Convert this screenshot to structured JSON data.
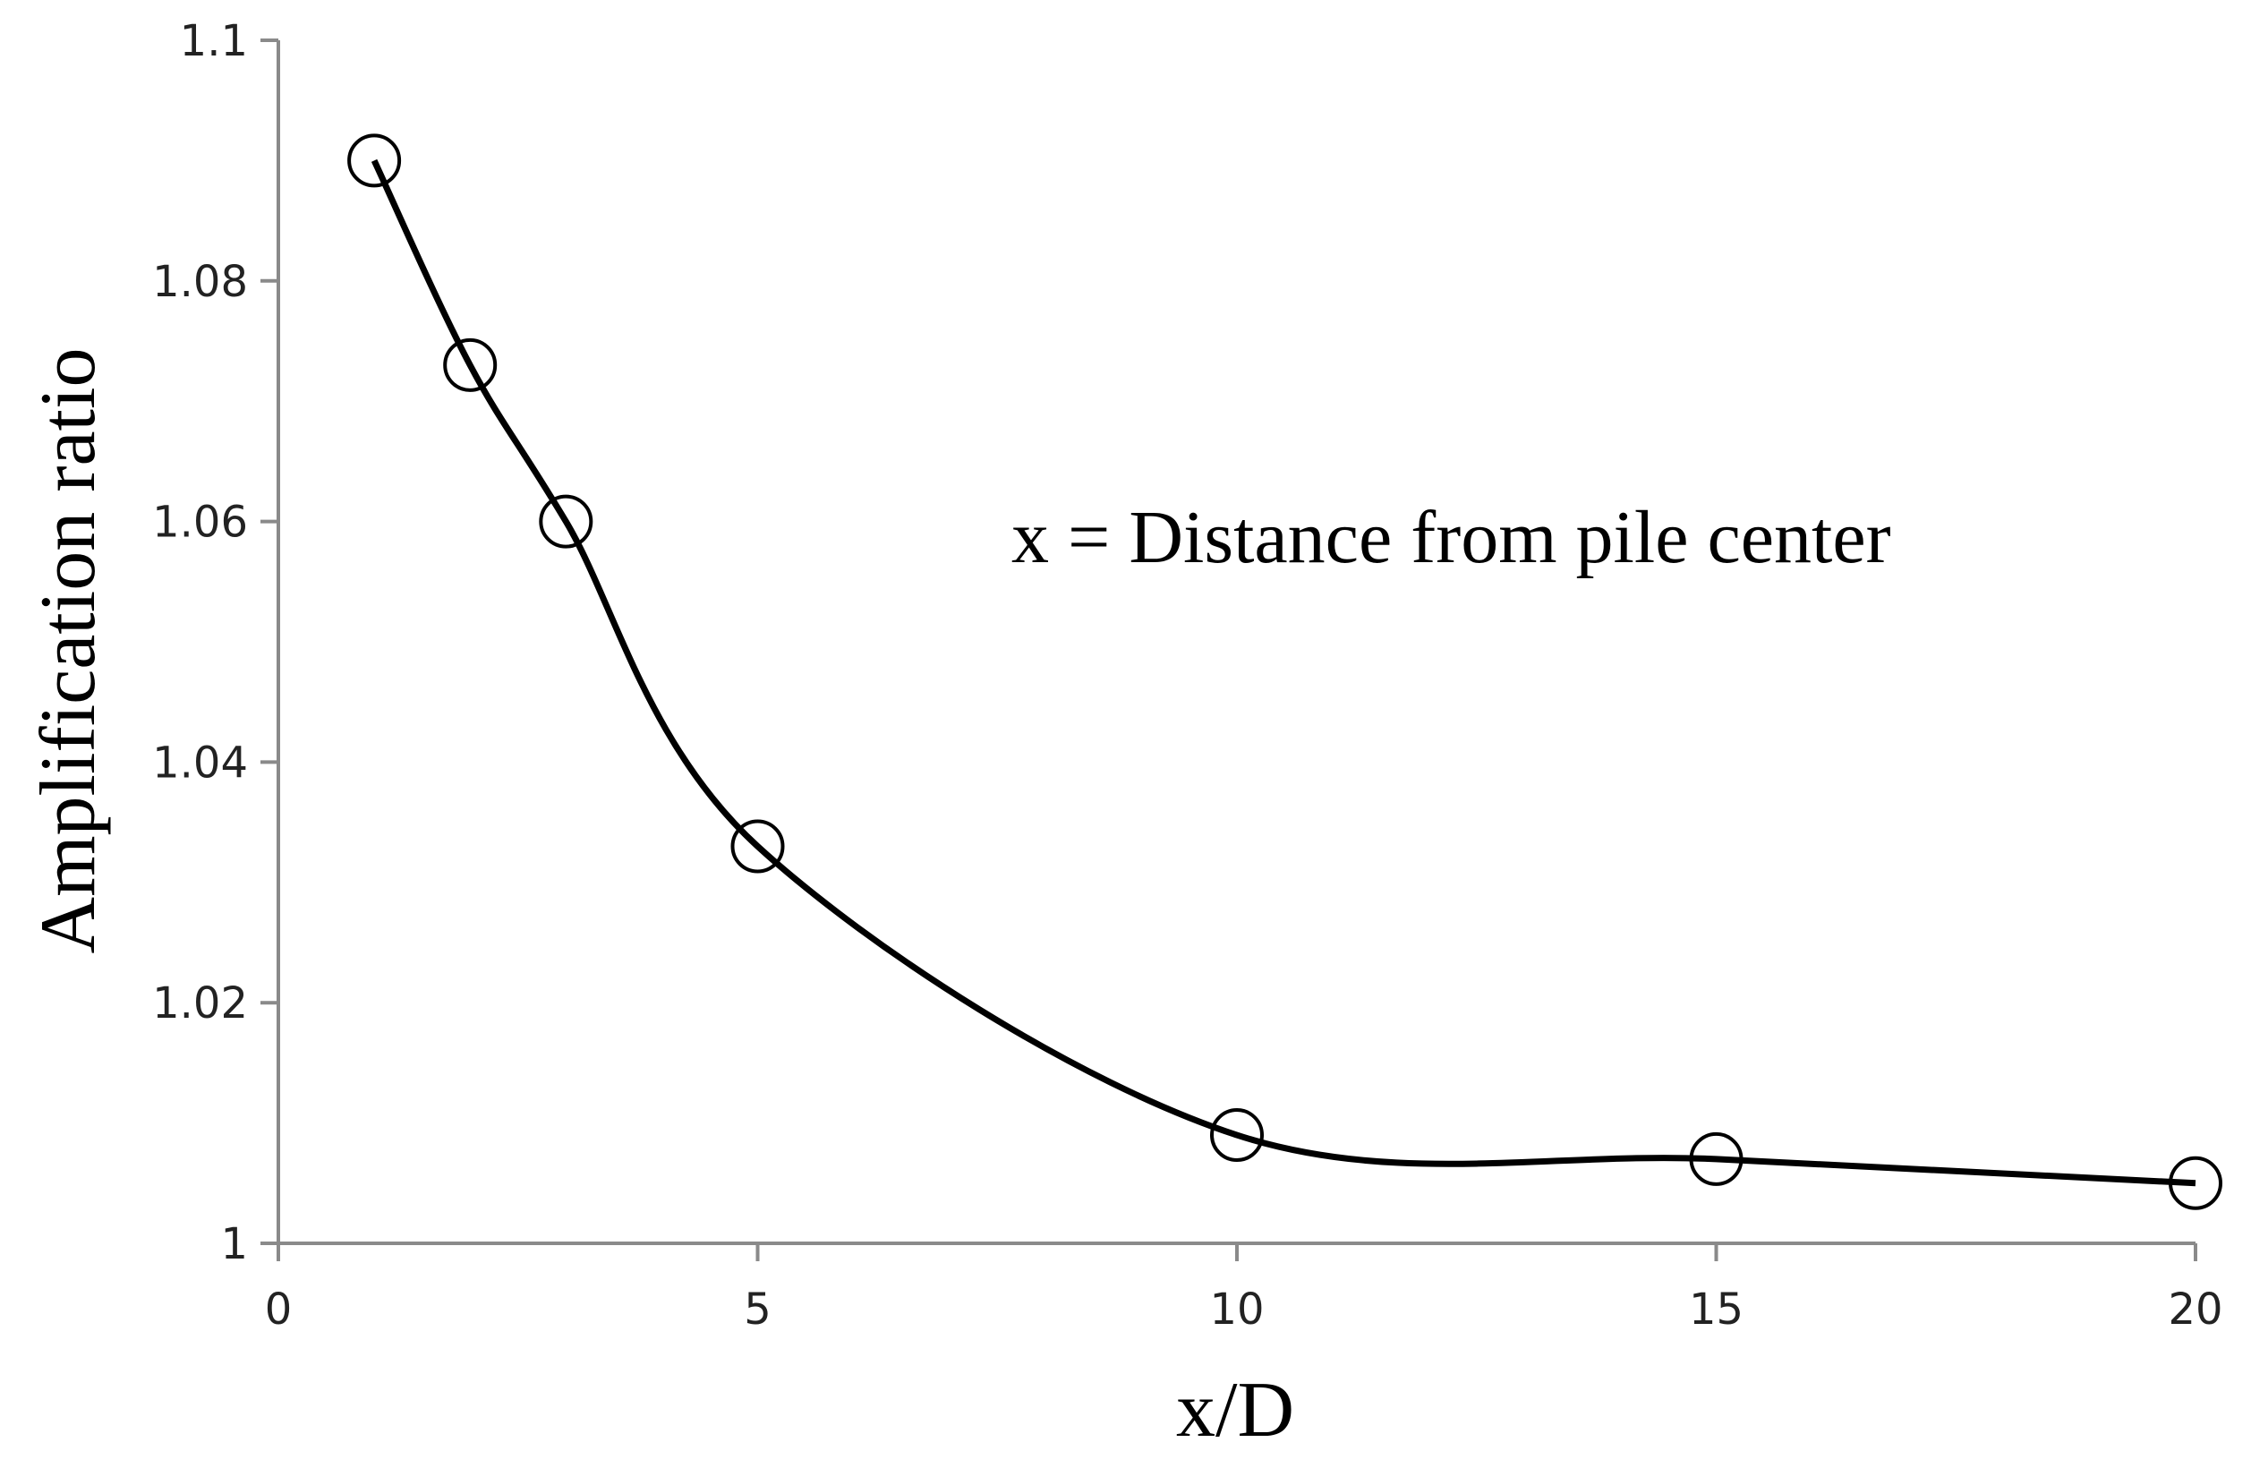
{
  "chart_data": {
    "type": "scatter",
    "title": "",
    "xlabel": "x/D",
    "ylabel": "Amplification ratio",
    "annotation": "x = Distance from pile center",
    "xlim": [
      0,
      20
    ],
    "ylim": [
      1,
      1.1
    ],
    "x_ticks": [
      "0",
      "5",
      "10",
      "15",
      "20"
    ],
    "y_ticks": [
      "1",
      "1.02",
      "1.04",
      "1.06",
      "1.08",
      "1.1"
    ],
    "grid": false,
    "legend": "none",
    "line_style": "smooth",
    "marker": "open-circle",
    "series": [
      {
        "x": [
          1,
          2,
          3,
          5,
          10,
          15,
          20
        ],
        "y": [
          1.09,
          1.073,
          1.06,
          1.033,
          1.009,
          1.007,
          1.005
        ]
      }
    ]
  }
}
